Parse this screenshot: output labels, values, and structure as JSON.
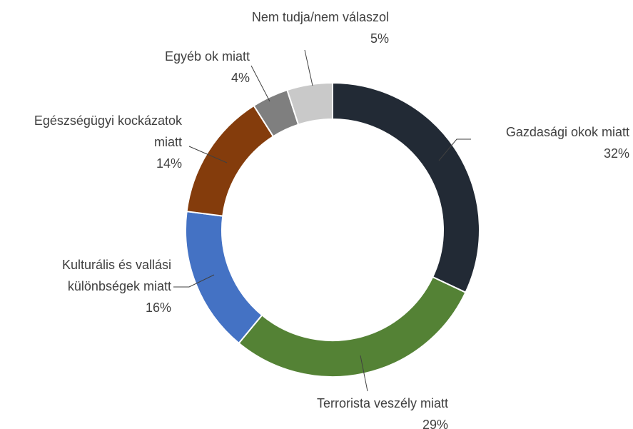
{
  "chart_data": {
    "type": "donut",
    "categories": [
      "Gazdasági  okok miatt",
      "Terrorista veszély miatt",
      "Kulturális és vallási különbségek miatt",
      "Egészségügyi kockázatok miatt",
      "Egyéb ok miatt",
      "Nem tudja/nem válaszol"
    ],
    "values": [
      32,
      29,
      16,
      14,
      4,
      5
    ],
    "value_labels": [
      "32%",
      "29%",
      "16%",
      "14%",
      "4%",
      "5%"
    ],
    "colors": [
      "#222a35",
      "#548235",
      "#4472c4",
      "#843c0c",
      "#7f7f7f",
      "#c9c9c9"
    ]
  }
}
